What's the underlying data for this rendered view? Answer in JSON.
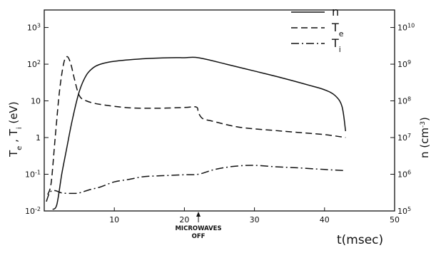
{
  "chart_data": {
    "type": "line",
    "title": "",
    "xlabel": "t(msec)",
    "ylabel_left": "T_e , T_i (eV)",
    "ylabel_right": "n (cm^-3)",
    "xlim": [
      0,
      50
    ],
    "ylim_left": [
      0.01,
      3000
    ],
    "ylim_right": [
      100000,
      30000000000
    ],
    "y_scale": "log",
    "grid": false,
    "legend_position": "top-right",
    "x_ticks": [
      10,
      20,
      30,
      40,
      50
    ],
    "x_tick_labels": [
      "10",
      "20",
      "30",
      "40",
      "50"
    ],
    "left_tick_labels": [
      "10^-2",
      "10^-1",
      "1",
      "10",
      "10^2",
      "10^3"
    ],
    "right_tick_labels": [
      "10^5",
      "10^6",
      "10^7",
      "10^8",
      "10^9",
      "10^10"
    ],
    "annotation": {
      "text_line1": "MICROWAVES",
      "text_line2": "OFF",
      "x": 22
    },
    "series": [
      {
        "name": "n",
        "axis": "right",
        "style": "solid",
        "x": [
          1.2,
          1.8,
          2.5,
          3.2,
          4.0,
          5.0,
          6.0,
          7.0,
          8.0,
          10,
          14,
          18,
          20,
          22,
          26,
          30,
          34,
          38,
          40,
          41.5,
          42.5,
          43
        ],
        "y": [
          110000,
          150000,
          1000000,
          5000000,
          30000000,
          180000000,
          500000000,
          800000000,
          1000000000,
          1200000000,
          1400000000,
          1500000000,
          1500000000,
          1500000000,
          1000000000,
          650000000,
          420000000,
          260000000,
          200000000,
          140000000,
          70000000,
          15000000
        ]
      },
      {
        "name": "T_e",
        "axis": "left",
        "style": "dashed",
        "x": [
          0.5,
          1.0,
          1.6,
          2.2,
          2.8,
          3.3,
          3.8,
          4.3,
          5.0,
          6.0,
          8.0,
          12,
          16,
          20,
          21.7,
          22.0,
          22.6,
          24,
          28,
          34,
          40,
          43
        ],
        "y": [
          0.028,
          0.06,
          1.2,
          20,
          110,
          160,
          100,
          40,
          14,
          10,
          8,
          6.5,
          6.3,
          6.6,
          6.8,
          4.8,
          3.3,
          2.8,
          1.9,
          1.5,
          1.2,
          1.0
        ]
      },
      {
        "name": "T_i",
        "axis": "left",
        "style": "dash-dot",
        "x": [
          0.3,
          0.8,
          1.5,
          2.5,
          4.0,
          5.0,
          6.5,
          8.0,
          10,
          12,
          14,
          16,
          18,
          20,
          22,
          24,
          26,
          28,
          30,
          33,
          36,
          40,
          43
        ],
        "y": [
          0.018,
          0.032,
          0.036,
          0.031,
          0.03,
          0.031,
          0.038,
          0.045,
          0.062,
          0.072,
          0.085,
          0.09,
          0.093,
          0.097,
          0.1,
          0.13,
          0.155,
          0.17,
          0.175,
          0.16,
          0.15,
          0.135,
          0.125
        ]
      }
    ]
  }
}
